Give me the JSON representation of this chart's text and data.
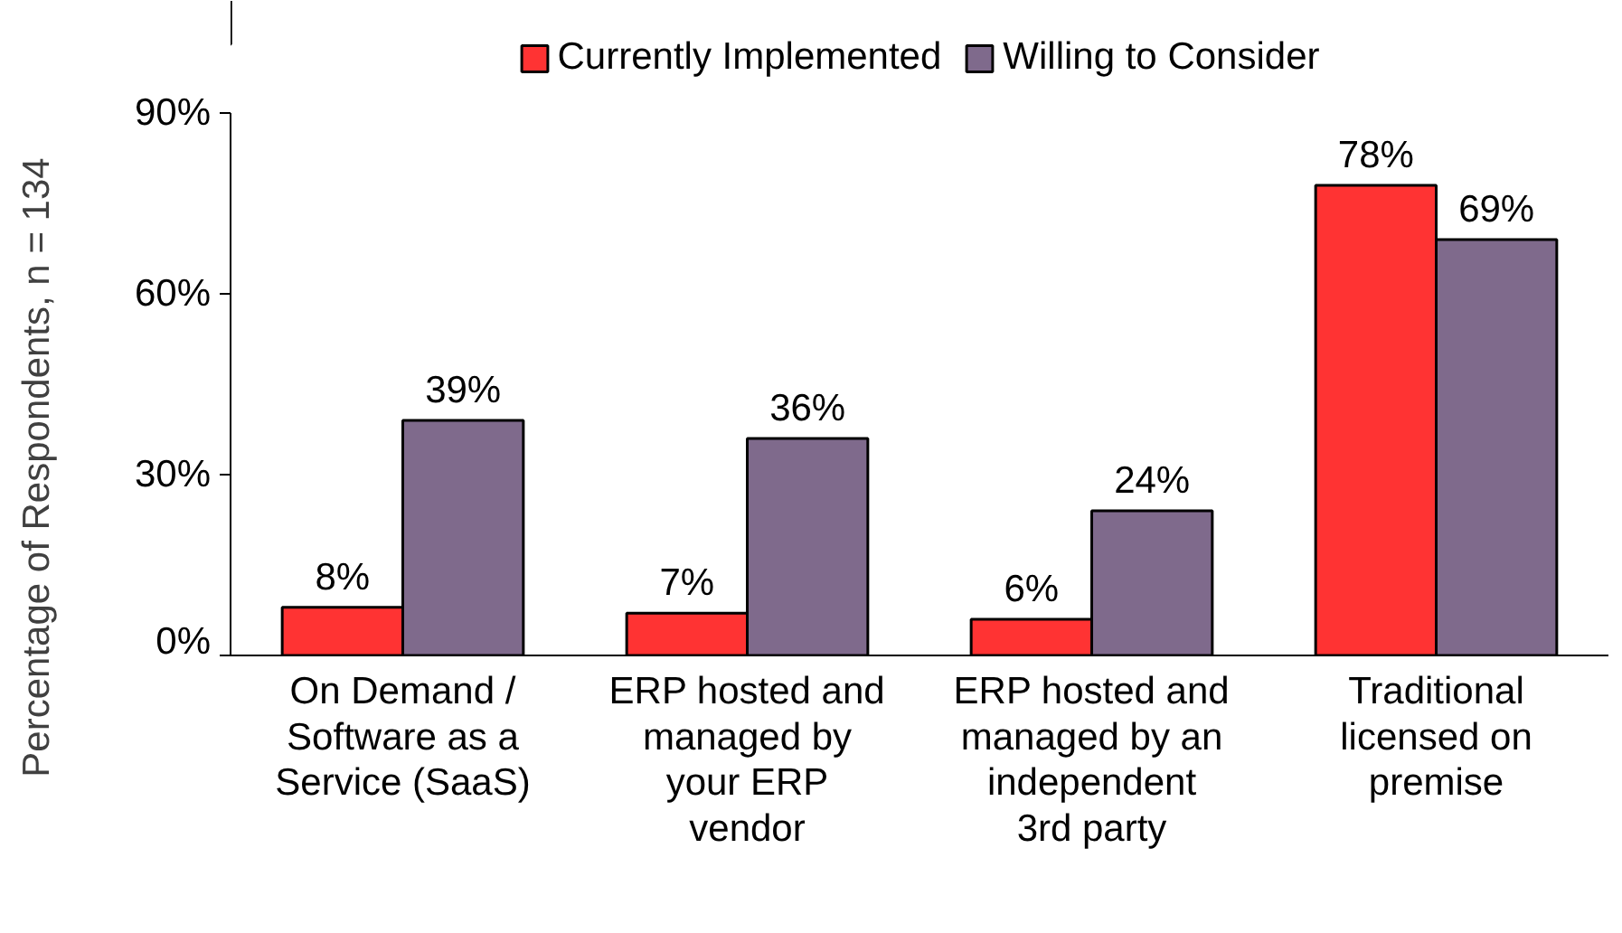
{
  "chart_data": {
    "type": "bar",
    "ylabel": "Percentage of Respondents, n = 134",
    "categories": [
      "On Demand / Software as a Service (SaaS)",
      "ERP hosted and managed by your ERP vendor",
      "ERP hosted and managed by an independent 3rd party",
      "Traditional licensed on premise"
    ],
    "series": [
      {
        "name": "Currently Implemented",
        "color": "#ff3333",
        "values": [
          8,
          7,
          6,
          78
        ],
        "value_labels": [
          "8%",
          "7%",
          "6%",
          "78%"
        ]
      },
      {
        "name": "Willing to Consider",
        "color": "#7f6a8c",
        "values": [
          39,
          36,
          24,
          69
        ],
        "value_labels": [
          "39%",
          "36%",
          "24%",
          "69%"
        ]
      }
    ],
    "ylim": [
      0,
      90
    ],
    "yticks": [
      {
        "value": 0,
        "label": "0%"
      },
      {
        "value": 30,
        "label": "30%"
      },
      {
        "value": 60,
        "label": "60%"
      },
      {
        "value": 90,
        "label": "90%"
      }
    ],
    "grid": false,
    "legend": "top"
  }
}
